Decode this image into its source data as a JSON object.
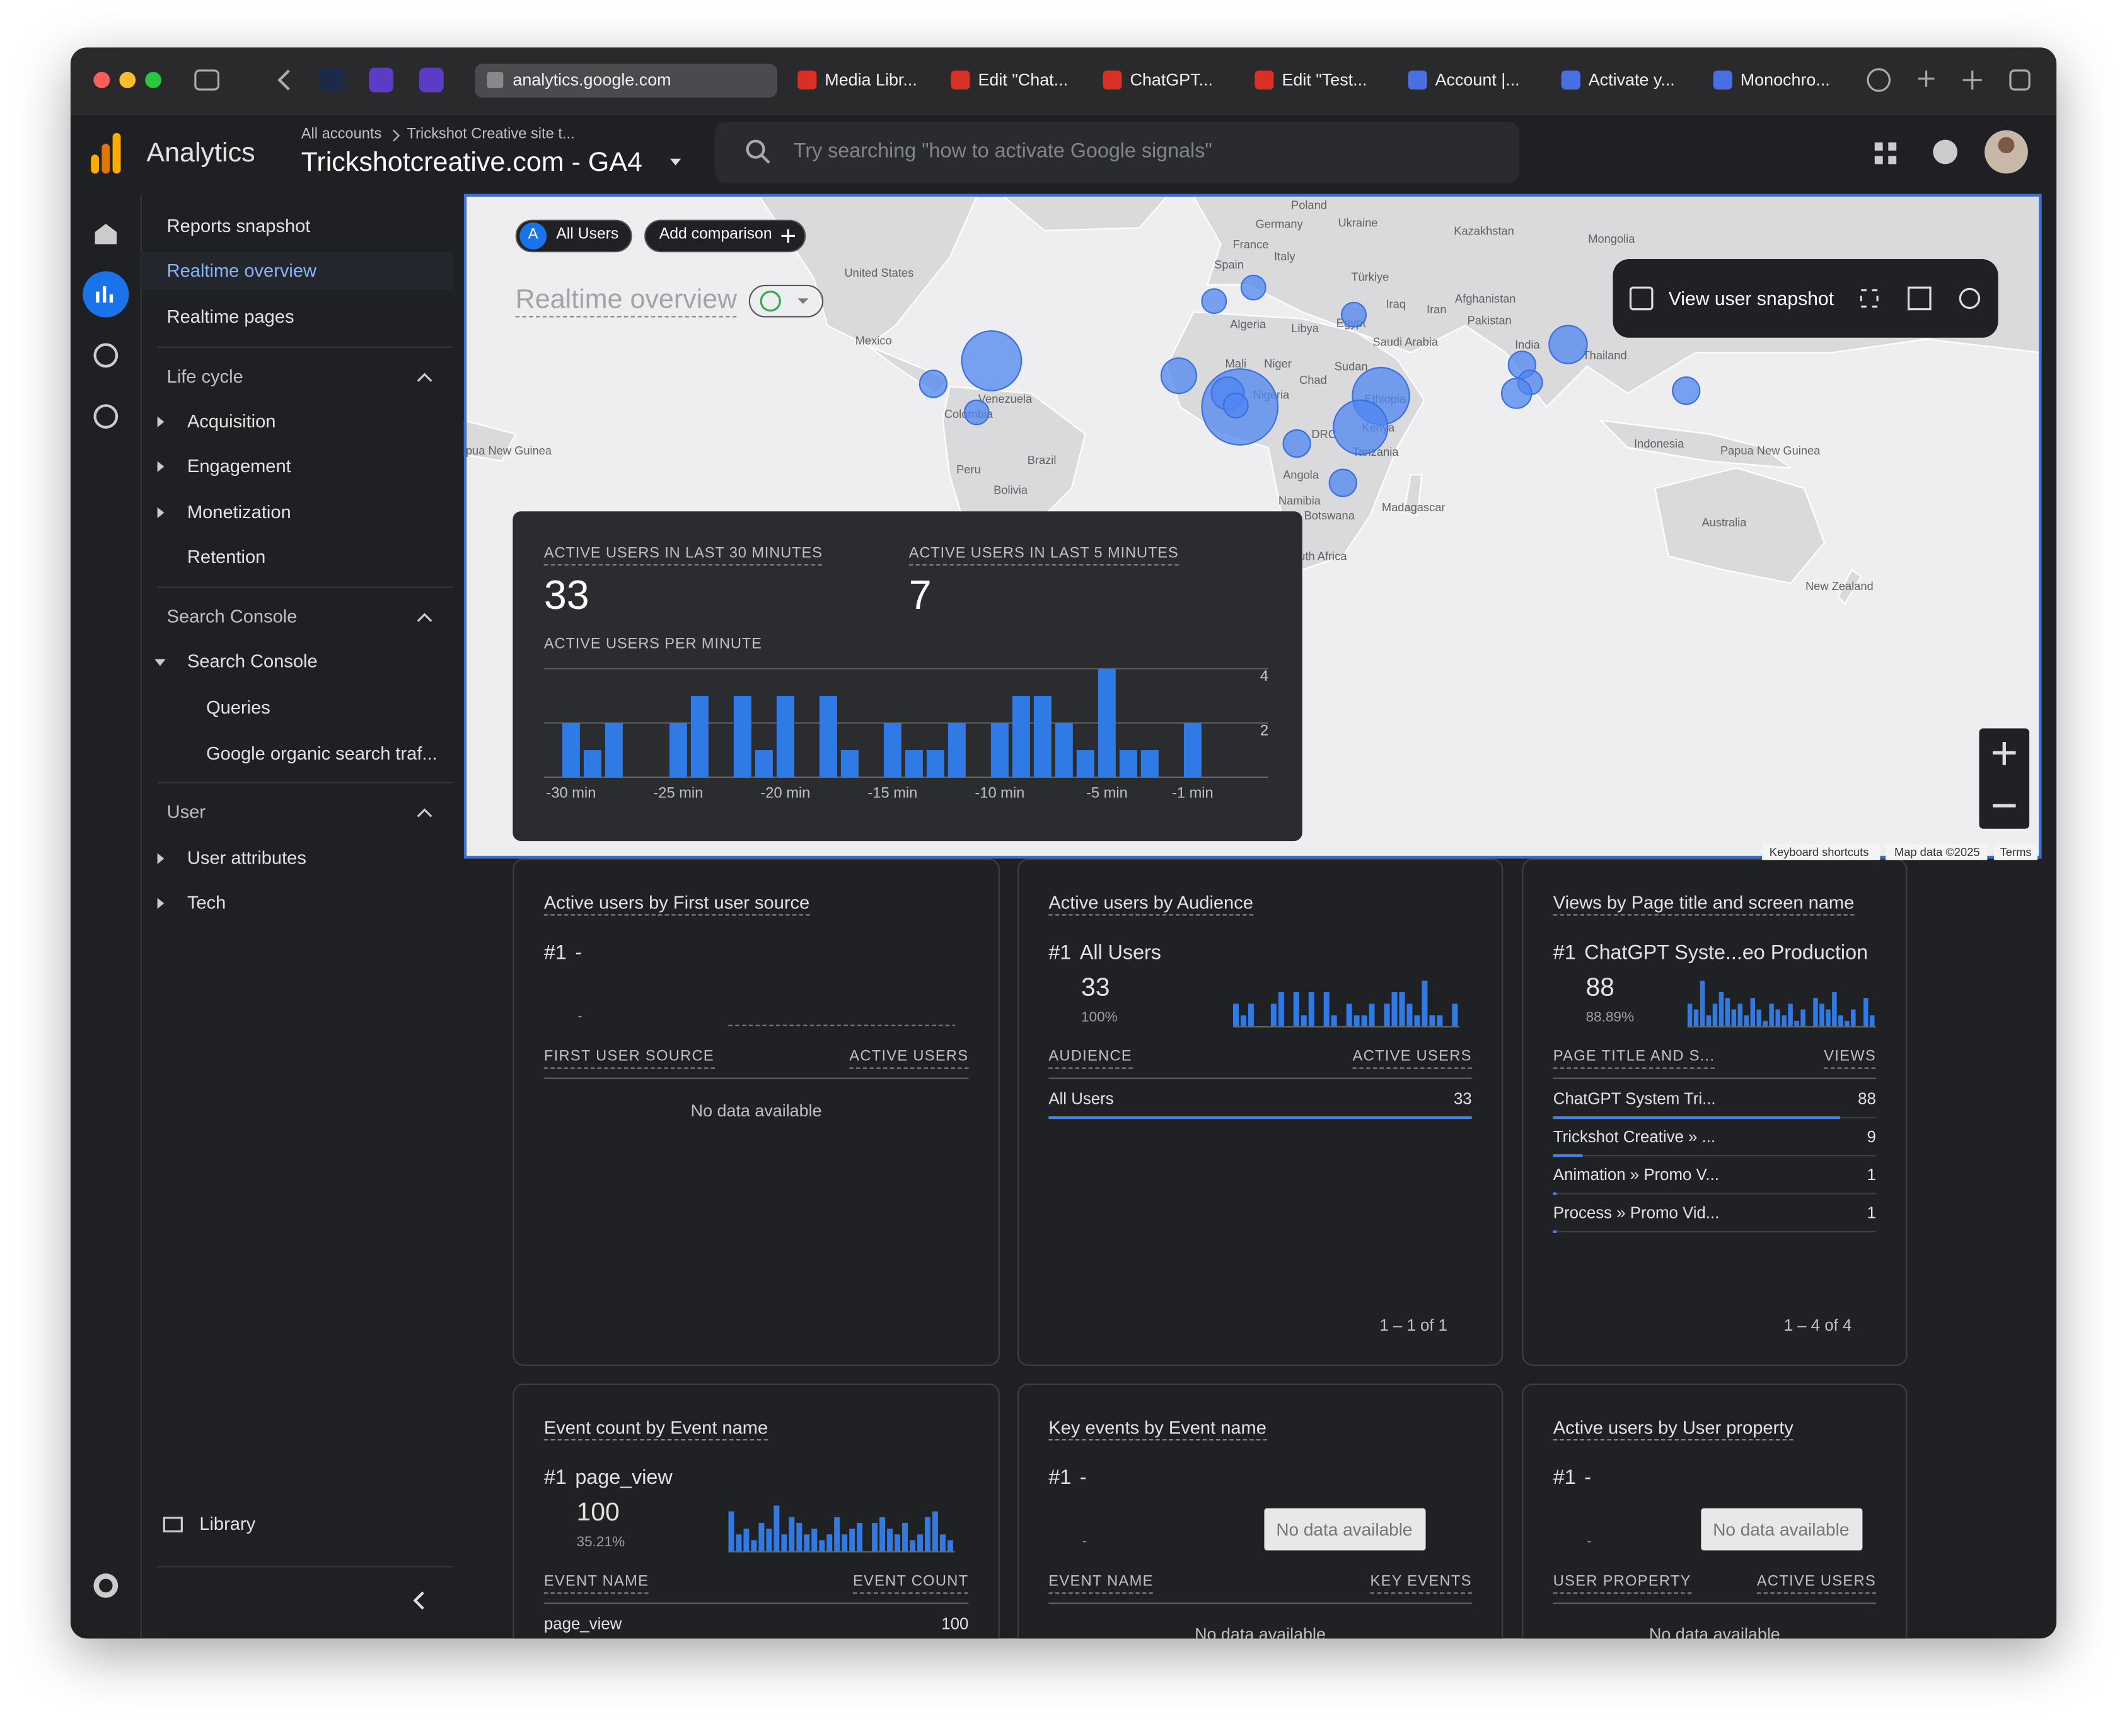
{
  "browser": {
    "tabs": [
      "analytics.google.com",
      "Media Libr...",
      "Edit \"Chat...",
      "ChatGPT...",
      "Edit \"Test...",
      "Account |...",
      "Activate y...",
      "Monochro..."
    ]
  },
  "header": {
    "product": "Analytics",
    "breadcrumb": [
      "All accounts",
      "Trickshot Creative site t..."
    ],
    "property": "Trickshotcreative.com - GA4",
    "search": "Try searching \"how to activate Google signals\""
  },
  "sidebar": {
    "top": [
      "Reports snapshot",
      "Realtime overview",
      "Realtime pages"
    ],
    "sections": [
      {
        "title": "Life cycle",
        "items": [
          "Acquisition",
          "Engagement",
          "Monetization",
          "Retention"
        ]
      },
      {
        "title": "Search Console",
        "items": [
          "Search Console",
          "Queries",
          "Google organic search traf..."
        ]
      },
      {
        "title": "User",
        "items": [
          "User attributes",
          "Tech"
        ]
      }
    ],
    "library": "Library"
  },
  "map": {
    "comparison": {
      "avatar": "A",
      "segment": "All Users",
      "add": "Add comparison"
    },
    "title": "Realtime overview",
    "snapshot": "View user snapshot",
    "labels": [
      "Poland",
      "Germany",
      "Ukraine",
      "France",
      "Kazakhstan",
      "Mongolia",
      "Italy",
      "Spain",
      "United States",
      "Türkiye",
      "Afghanistan",
      "Iraq",
      "Iran",
      "Pakistan",
      "Algeria",
      "Libya",
      "Egypt",
      "Saudi Arabia",
      "Mexico",
      "India",
      "Thailand",
      "Mali",
      "Niger",
      "Sudan",
      "Chad",
      "Venezuela",
      "Nigeria",
      "Ethiopia",
      "Colombia",
      "Kenya",
      "DRC",
      "Papua New Guinea",
      "Indonesia",
      "Papua New Guinea",
      "Tanzania",
      "Brazil",
      "Peru",
      "Angola",
      "Bolivia",
      "Namibia",
      "Madagascar",
      "Botswana",
      "Australia",
      "South Africa",
      "New Zealand"
    ],
    "footer": [
      "Keyboard shortcuts",
      "Map data ©2025",
      "Terms"
    ]
  },
  "realtime": {
    "last_30": {
      "label": "ACTIVE USERS IN LAST 30 MINUTES",
      "value": 33
    },
    "last_5": {
      "label": "ACTIVE USERS IN LAST 5 MINUTES",
      "value": 7
    },
    "per_minute": {
      "type": "bar",
      "title": "ACTIVE USERS PER MINUTE",
      "categories": [
        "-30 min",
        null,
        null,
        null,
        null,
        "-25 min",
        null,
        null,
        null,
        null,
        "-20 min",
        null,
        null,
        null,
        null,
        "-15 min",
        null,
        null,
        null,
        null,
        "-10 min",
        null,
        null,
        null,
        null,
        "-5 min",
        null,
        null,
        null,
        "-1 min"
      ],
      "values": [
        2,
        1,
        2,
        0,
        0,
        2,
        3,
        0,
        3,
        1,
        3,
        0,
        3,
        1,
        0,
        2,
        1,
        1,
        2,
        0,
        2,
        3,
        3,
        2,
        1,
        4,
        1,
        1,
        0,
        2
      ],
      "color": "#2f7ae5",
      "ylim": [
        0,
        4
      ],
      "yticks": [
        2,
        4
      ]
    }
  },
  "cards": [
    {
      "title": "Active users by First user source",
      "rank": "#1",
      "top": "-",
      "placeholder": "-",
      "columns": [
        "FIRST USER SOURCE",
        "ACTIVE USERS"
      ],
      "empty": "No data available"
    },
    {
      "title": "Active users by Audience",
      "rank": "#1",
      "top": "All Users",
      "top_value": 33,
      "top_share": "100%",
      "spark": {
        "values": [
          2,
          1,
          2,
          0,
          0,
          2,
          3,
          0,
          3,
          1,
          3,
          0,
          3,
          1,
          0,
          2,
          1,
          1,
          2,
          0,
          2,
          3,
          3,
          2,
          1,
          4,
          1,
          1,
          0,
          2
        ],
        "ylim": [
          0,
          4
        ],
        "color": "#2f7ae5"
      },
      "columns": [
        "AUDIENCE",
        "ACTIVE USERS"
      ],
      "rows": [
        [
          "All Users",
          33
        ]
      ],
      "pagination": "1 – 1 of 1"
    },
    {
      "title": "Views by Page title and screen name",
      "rank": "#1",
      "top": "ChatGPT Syste...eo Production",
      "top_value": 88,
      "top_share": "88.89%",
      "spark": {
        "values": [
          4,
          3,
          8,
          2,
          4,
          6,
          5,
          3,
          4,
          2,
          5,
          3,
          1,
          4,
          3,
          2,
          4,
          1,
          3,
          0,
          5,
          4,
          3,
          6,
          2,
          1,
          3,
          0,
          5,
          2
        ],
        "ylim": [
          0,
          8
        ],
        "color": "#2f7ae5"
      },
      "columns": [
        "PAGE TITLE AND S...",
        "VIEWS"
      ],
      "rows": [
        [
          "ChatGPT System Tri...",
          88
        ],
        [
          "Trickshot Creative » ...",
          9
        ],
        [
          "Animation » Promo V...",
          1
        ],
        [
          "Process » Promo Vid...",
          1
        ]
      ],
      "pagination": "1 – 4 of 4"
    },
    {
      "title": "Event count by Event name",
      "rank": "#1",
      "top": "page_view",
      "top_value": 100,
      "top_share": "35.21%",
      "spark": {
        "values": [
          7,
          3,
          4,
          2,
          5,
          4,
          8,
          3,
          6,
          5,
          3,
          4,
          2,
          3,
          6,
          3,
          4,
          5,
          0,
          5,
          6,
          4,
          3,
          5,
          2,
          3,
          6,
          7,
          3,
          2
        ],
        "ylim": [
          0,
          8
        ],
        "color": "#2f7ae5"
      },
      "columns": [
        "EVENT NAME",
        "EVENT COUNT"
      ],
      "rows": [
        [
          "page_view",
          100
        ]
      ]
    },
    {
      "title": "Key events by Event name",
      "rank": "#1",
      "top": "-",
      "placeholder": "-",
      "button": "No data available",
      "columns": [
        "EVENT NAME",
        "KEY EVENTS"
      ],
      "empty": "No data available"
    },
    {
      "title": "Active users by User property",
      "rank": "#1",
      "top": "-",
      "placeholder": "-",
      "button": "No data available",
      "columns": [
        "USER PROPERTY",
        "ACTIVE USERS"
      ],
      "empty": "No data available"
    }
  ]
}
